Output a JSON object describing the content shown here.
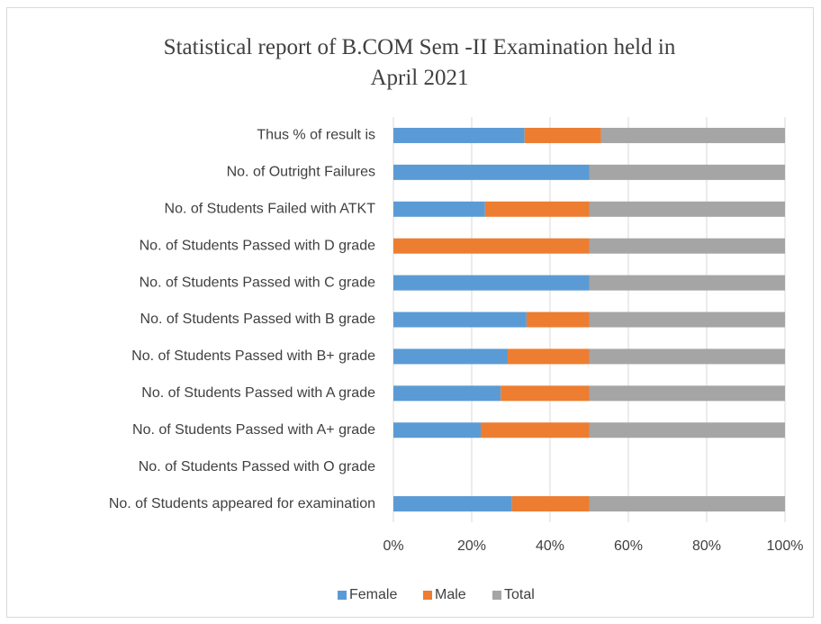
{
  "chart_data": {
    "type": "stacked-bar-horizontal",
    "title": "Statistical report of B.COM Sem -II Examination held in April 2021",
    "categories": [
      "Thus % of result is",
      "No. of Outright Failures",
      "No. of Students Failed with ATKT",
      "No. of Students Passed with D grade",
      "No. of Students Passed with C grade",
      "No. of Students Passed with B grade",
      "No. of Students Passed with B+ grade",
      "No. of Students Passed with A grade",
      "No. of Students Passed with A+ grade",
      "No. of Students Passed with  O grade",
      "No. of Students appeared for examination"
    ],
    "series": [
      {
        "name": "Female",
        "color": "#5b9bd5",
        "values": [
          33.5,
          50,
          23.4,
          0,
          50,
          34,
          29.2,
          27.4,
          22.3,
          0,
          30.3
        ]
      },
      {
        "name": "Male",
        "color": "#ed7d31",
        "values": [
          19.5,
          0,
          26.6,
          50,
          0,
          16,
          20.8,
          22.6,
          27.7,
          0,
          19.7
        ]
      },
      {
        "name": "Total",
        "color": "#a5a5a5",
        "values": [
          47,
          50,
          50,
          50,
          50,
          50,
          50,
          50,
          50,
          0,
          50
        ]
      }
    ],
    "xlim": [
      0,
      100
    ],
    "xticks": [
      {
        "value": 0,
        "label": "0%"
      },
      {
        "value": 20,
        "label": "20%"
      },
      {
        "value": 40,
        "label": "40%"
      },
      {
        "value": 60,
        "label": "60%"
      },
      {
        "value": 80,
        "label": "80%"
      },
      {
        "value": 100,
        "label": "100%"
      }
    ],
    "grid": true,
    "legend": "bottom"
  }
}
